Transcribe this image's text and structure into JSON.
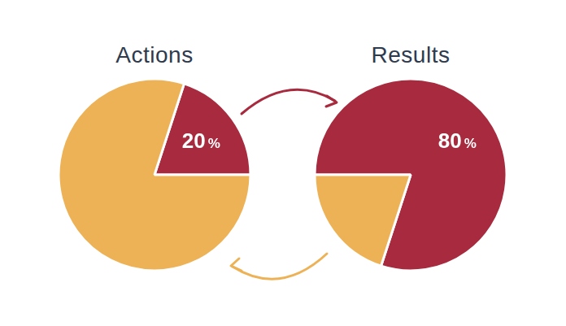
{
  "chart_data": [
    {
      "type": "pie",
      "title": "Actions",
      "values": [
        20,
        80
      ],
      "colors": [
        "#a82a3e",
        "#eeb256"
      ],
      "data_labels": true,
      "value_labels": [
        "20%",
        null
      ]
    },
    {
      "type": "pie",
      "title": "Results",
      "values": [
        80,
        20
      ],
      "colors": [
        "#a82a3e",
        "#eeb256"
      ],
      "data_labels": true,
      "value_labels": [
        "80%",
        null
      ]
    }
  ]
}
